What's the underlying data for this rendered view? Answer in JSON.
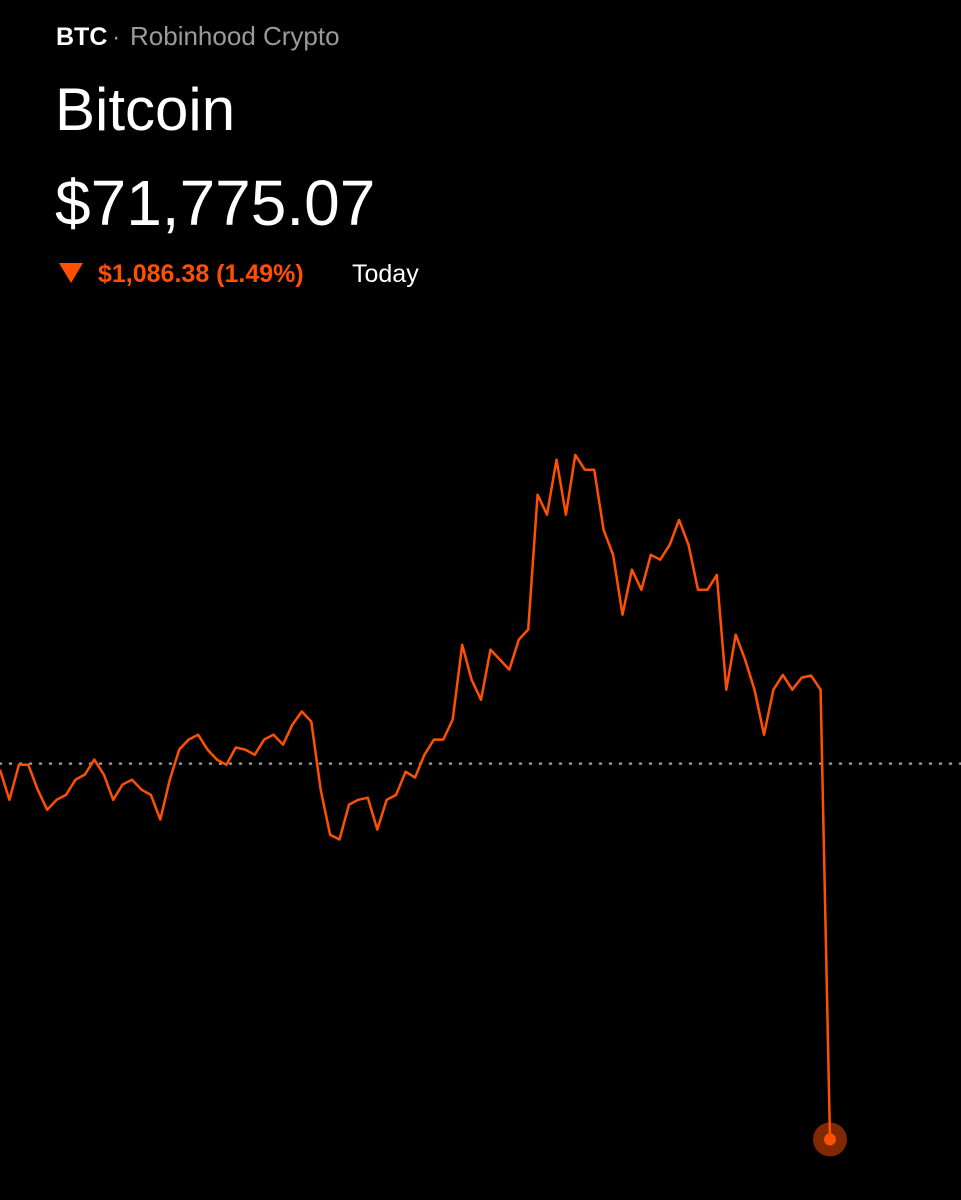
{
  "header": {
    "ticker": "BTC",
    "separator": "·",
    "source": "Robinhood Crypto",
    "name": "Bitcoin",
    "price": "$71,775.07",
    "change": "$1,086.38 (1.49%)",
    "period": "Today"
  },
  "chart_data": {
    "type": "line",
    "color": "#ff5000",
    "values": [
      72844,
      72757,
      72858,
      72858,
      72786,
      72728,
      72757,
      72771,
      72815,
      72830,
      72873,
      72830,
      72757,
      72801,
      72815,
      72786,
      72771,
      72700,
      72815,
      72902,
      72931,
      72945,
      72902,
      72873,
      72858,
      72908,
      72902,
      72887,
      72931,
      72945,
      72916,
      72974,
      73012,
      72983,
      72786,
      72656,
      72642,
      72743,
      72757,
      72763,
      72671,
      72757,
      72771,
      72838,
      72821,
      72887,
      72931,
      72931,
      72989,
      73205,
      73104,
      73046,
      73191,
      73162,
      73133,
      73220,
      73249,
      73639,
      73581,
      73740,
      73581,
      73754,
      73711,
      73711,
      73537,
      73465,
      73292,
      73422,
      73364,
      73465,
      73451,
      73494,
      73566,
      73494,
      73364,
      73364,
      73407,
      73075,
      73234,
      73162,
      73075,
      72945,
      73075,
      73118,
      73075,
      73110,
      73116,
      73075,
      71775.07
    ],
    "reference_line": 72861.45,
    "ylim": [
      71600,
      74800
    ]
  }
}
